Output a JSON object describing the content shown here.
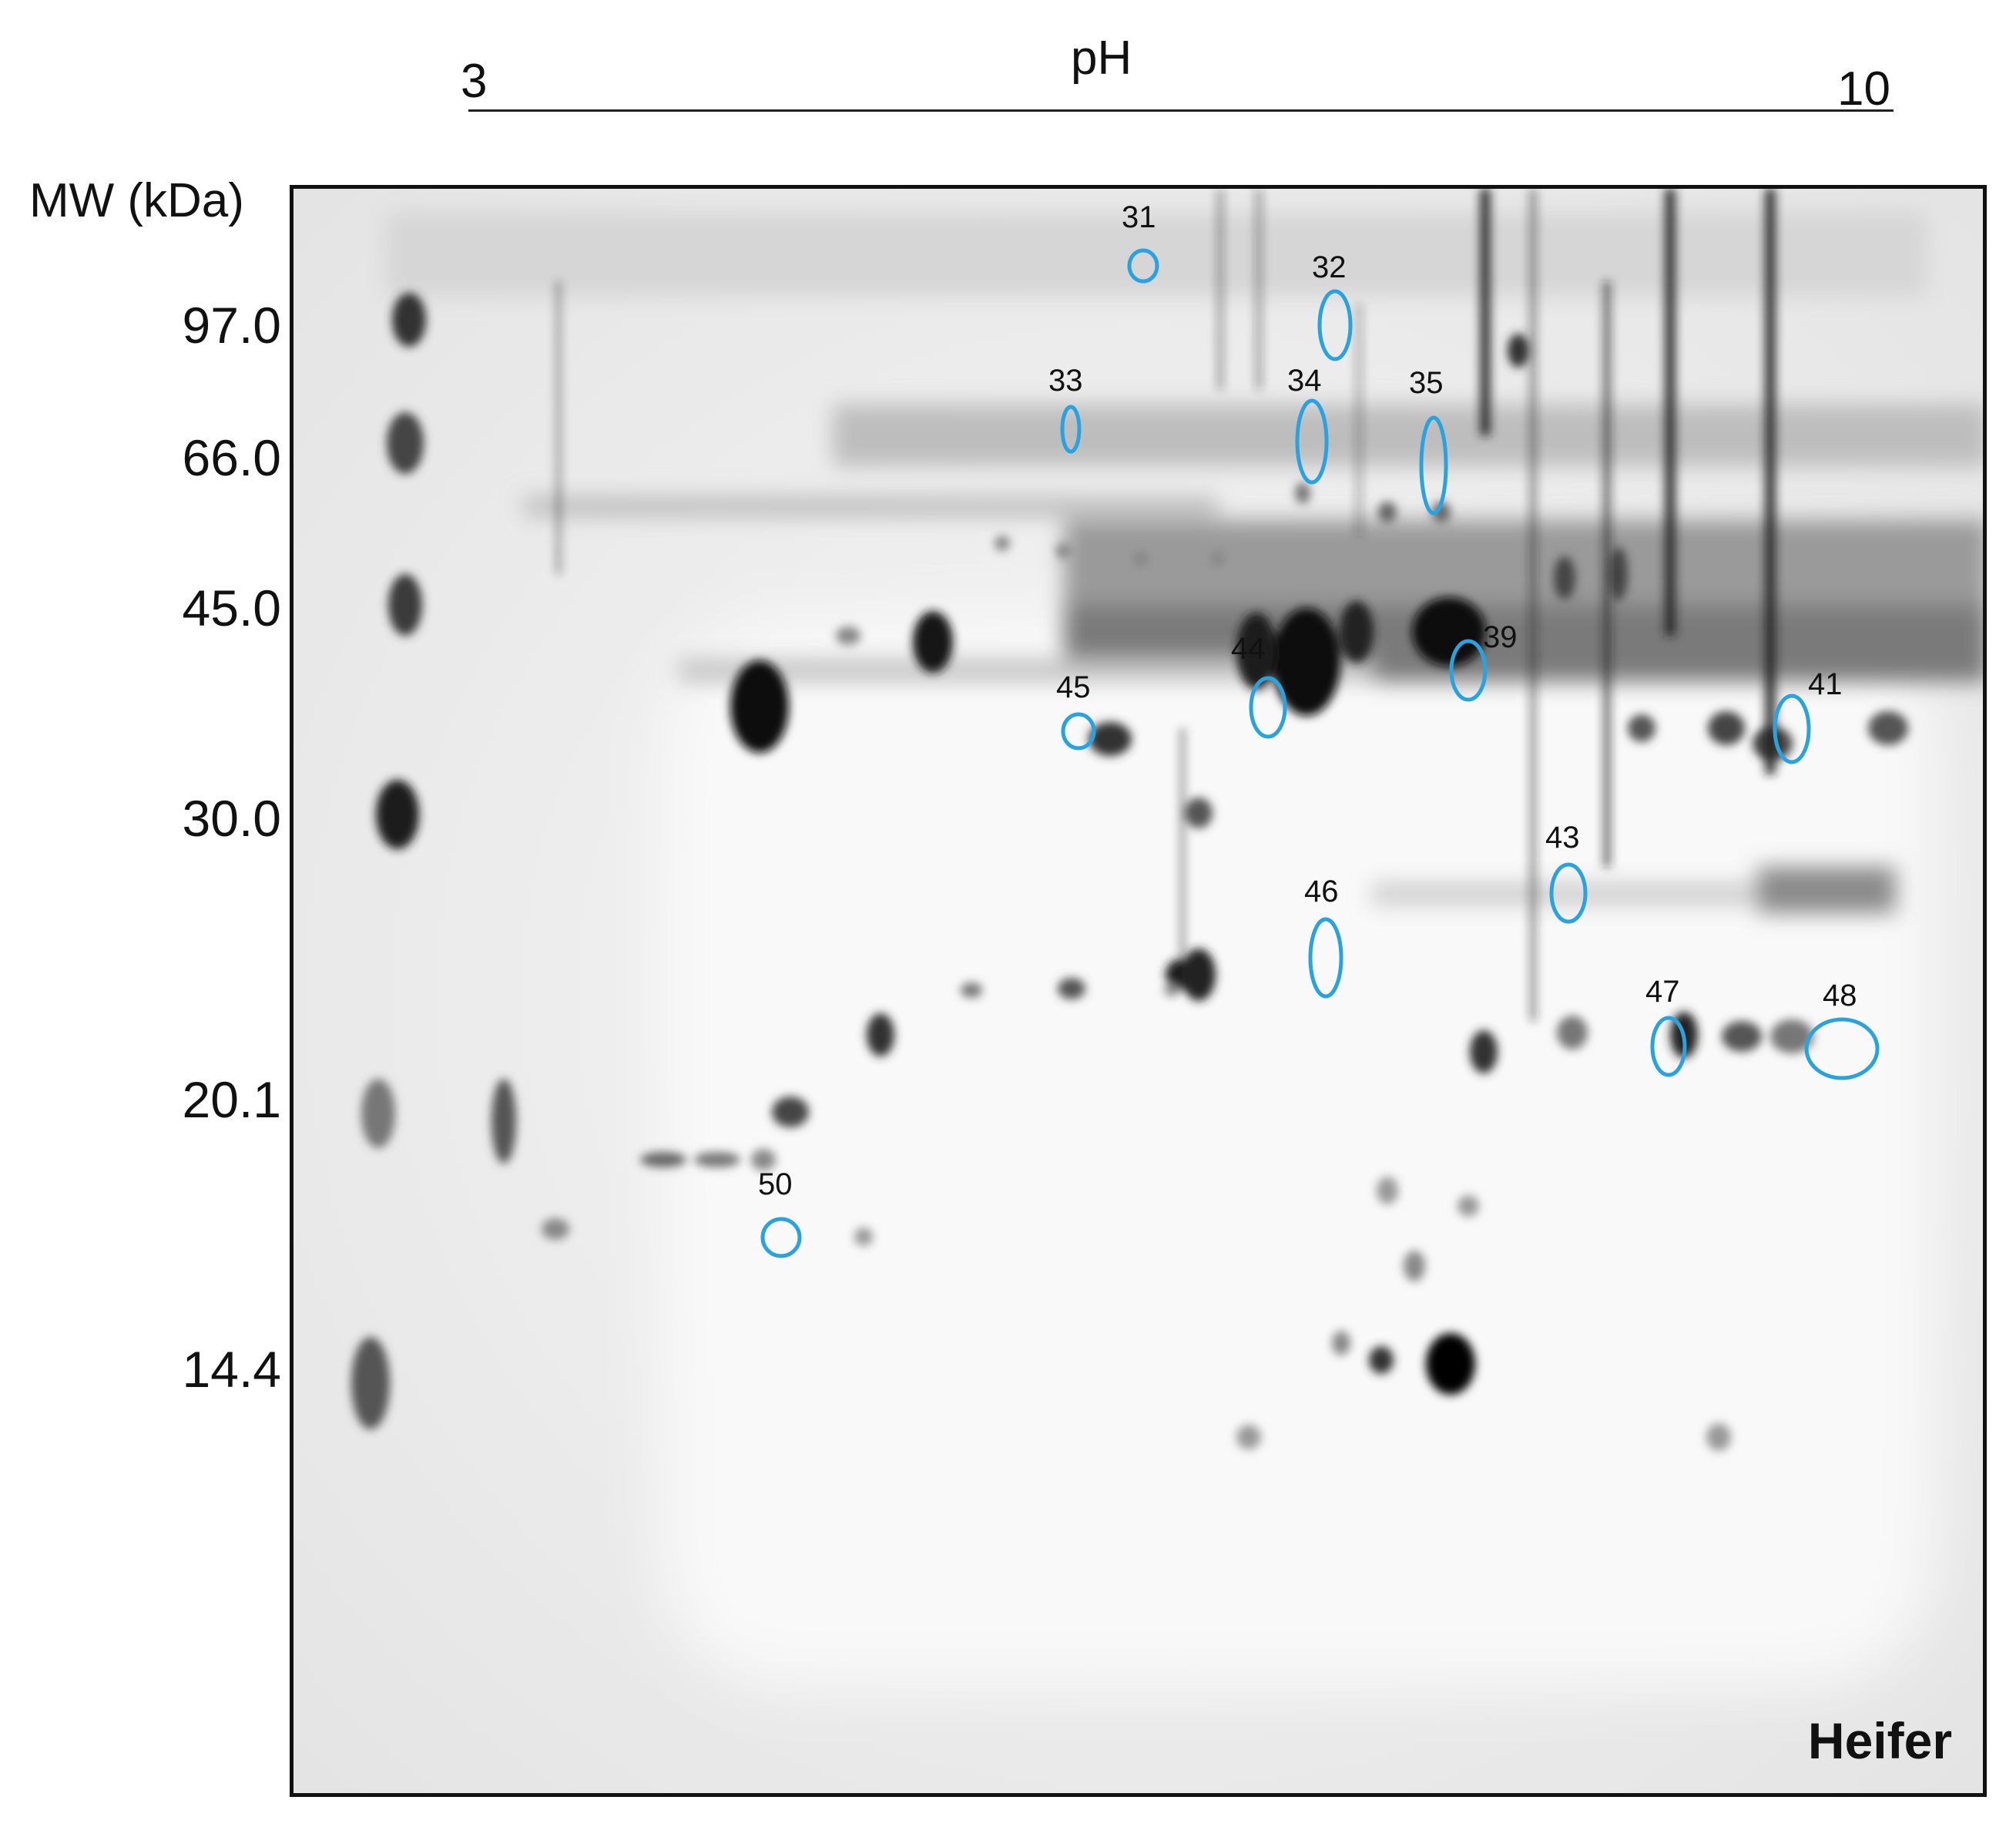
{
  "ph_axis": {
    "title": "pH",
    "min_label": "3",
    "max_label": "10"
  },
  "mw_axis": {
    "title": "MW (kDa)",
    "markers": [
      "97.0",
      "66.0",
      "45.0",
      "30.0",
      "20.1",
      "14.4"
    ]
  },
  "sample_label": "Heifer",
  "spot_labels": [
    "31",
    "32",
    "33",
    "34",
    "35",
    "39",
    "41",
    "43",
    "44",
    "45",
    "46",
    "47",
    "48",
    "50"
  ],
  "colors": {
    "circle": "#29a3e0",
    "axis": "#111111"
  }
}
